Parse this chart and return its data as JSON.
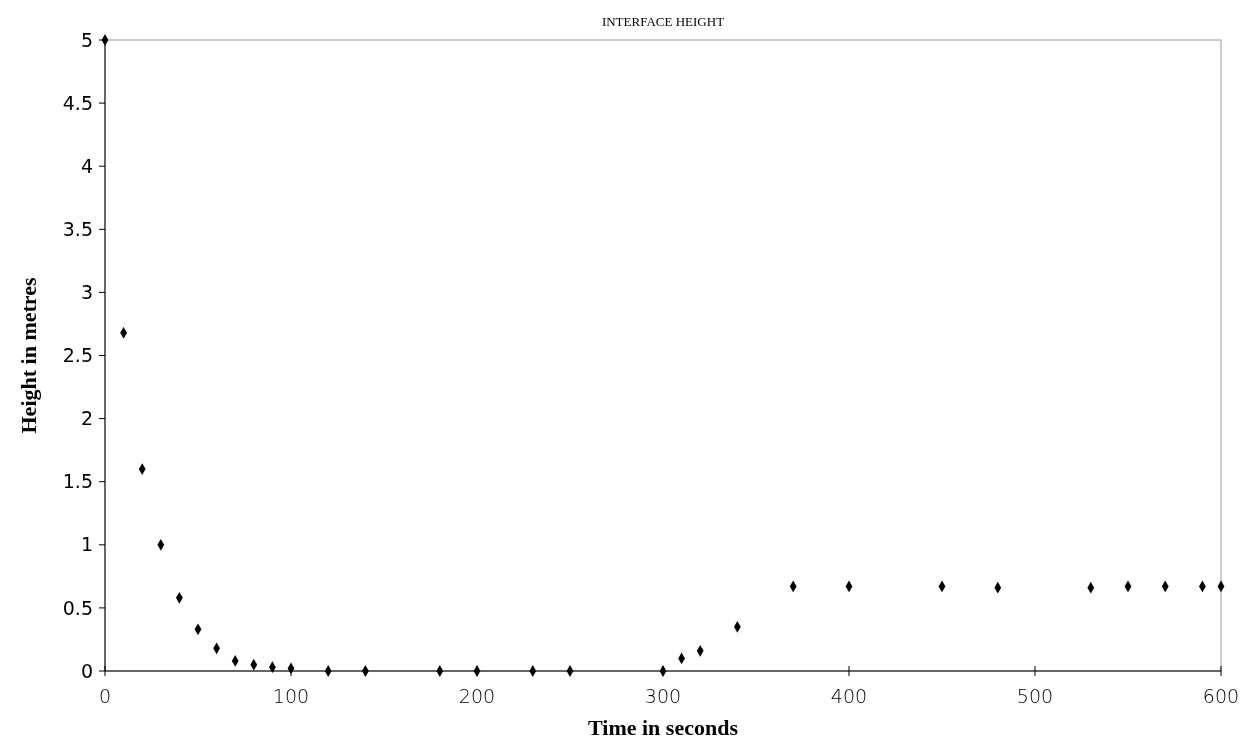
{
  "chart_data": {
    "type": "scatter",
    "title": "INTERFACE HEIGHT",
    "xlabel": "Time in seconds",
    "ylabel": "Height in metres",
    "x": [
      0,
      10,
      20,
      30,
      40,
      50,
      60,
      70,
      80,
      90,
      100,
      120,
      140,
      180,
      200,
      230,
      250,
      300,
      310,
      320,
      340,
      370,
      400,
      450,
      480,
      530,
      550,
      570,
      590,
      600
    ],
    "series": [
      {
        "color": "#000000",
        "values": [
          5,
          2.68,
          1.6,
          1.0,
          0.58,
          0.33,
          0.18,
          0.08,
          0.05,
          0.03,
          0.02,
          0,
          0,
          0,
          0,
          0,
          0,
          0,
          0.1,
          0.16,
          0.35,
          0.67,
          0.67,
          0.67,
          0.66,
          0.66,
          0.67,
          0.67,
          0.67,
          0.67
        ]
      }
    ],
    "xlim": [
      0,
      600
    ],
    "xticks": [
      0,
      100,
      200,
      300,
      400,
      500,
      600
    ],
    "ylim": [
      0,
      5
    ],
    "yticks": [
      0,
      0.5,
      1,
      1.5,
      2,
      2.5,
      3,
      3.5,
      4,
      4.5,
      5
    ],
    "marker": "diamond",
    "grid": false
  }
}
